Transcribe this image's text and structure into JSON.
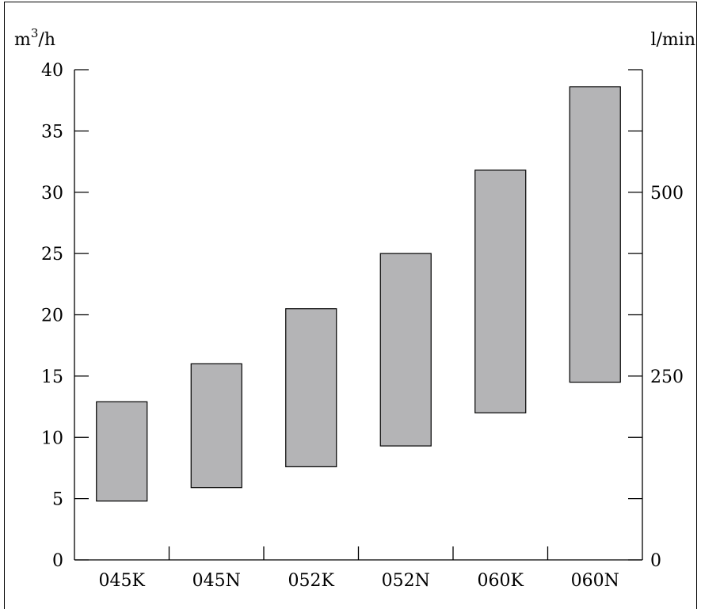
{
  "chart_data": {
    "type": "bar",
    "subtype": "floating-range",
    "categories": [
      "045K",
      "045N",
      "052K",
      "052N",
      "060K",
      "060N"
    ],
    "ranges": [
      {
        "low": 4.8,
        "high": 12.9
      },
      {
        "low": 5.9,
        "high": 16.0
      },
      {
        "low": 7.6,
        "high": 20.5
      },
      {
        "low": 9.3,
        "high": 25.0
      },
      {
        "low": 12.0,
        "high": 31.8
      },
      {
        "low": 14.5,
        "high": 38.6
      }
    ],
    "ylabel_left_base": "m",
    "ylabel_left_sup": "3",
    "ylabel_left_tail": "/h",
    "ylabel_right": "l/min",
    "y_left": {
      "min": 0,
      "max": 40,
      "ticks": [
        0,
        5,
        10,
        15,
        20,
        25,
        30,
        35,
        40
      ]
    },
    "y_right": {
      "min": 0,
      "max": 666.67,
      "tick_step": 83.333,
      "labeled_ticks": [
        0,
        250,
        500
      ]
    },
    "bar_color": "#b4b4b6",
    "grid": false,
    "legend": "none"
  }
}
